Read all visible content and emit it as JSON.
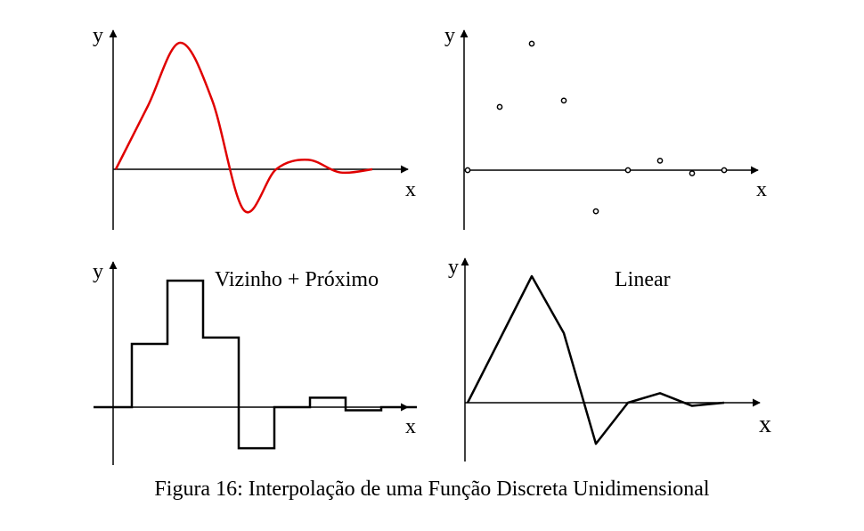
{
  "figure": {
    "caption": "Figura 16: Interpolação de uma Função Discreta Unidimensional",
    "colors": {
      "curve": "#e00000",
      "ink": "#000000"
    },
    "panels": [
      {
        "id": "continuous",
        "x_label": "x",
        "y_label": "y",
        "title": ""
      },
      {
        "id": "samples",
        "x_label": "x",
        "y_label": "y",
        "title": ""
      },
      {
        "id": "nearest",
        "x_label": "x",
        "y_label": "y",
        "title": "Vizinho + Próximo"
      },
      {
        "id": "linear",
        "x_label": "x",
        "y_label": "y",
        "title": "Linear"
      }
    ],
    "samples": [
      0,
      1,
      2,
      3,
      4,
      5,
      6,
      7,
      8
    ],
    "sample_values": [
      0,
      1.0,
      2.0,
      1.1,
      -0.65,
      0,
      0.15,
      -0.05,
      0
    ]
  }
}
